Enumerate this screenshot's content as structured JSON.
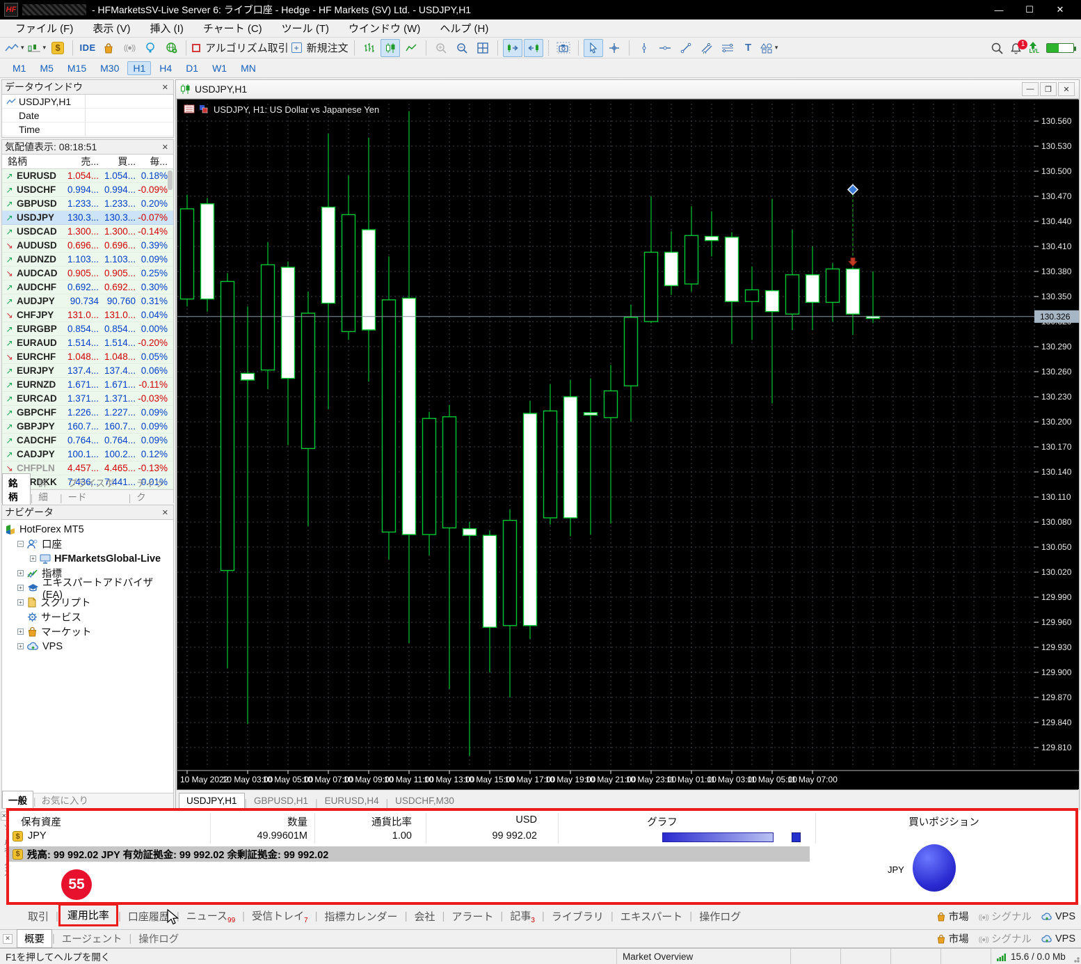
{
  "window": {
    "logo": "HF",
    "title": "- HFMarketsSV-Live Server 6: ライブ口座 - Hedge - HF Markets (SV) Ltd. - USDJPY,H1",
    "controls": {
      "minimize": "—",
      "maximize": "☐",
      "close": "✕"
    }
  },
  "menu": {
    "items": [
      "ファイル (F)",
      "表示 (V)",
      "挿入 (I)",
      "チャート (C)",
      "ツール (T)",
      "ウインドウ (W)",
      "ヘルプ (H)"
    ]
  },
  "toolbar": {
    "ide_label": "IDE",
    "algo_label": "アルゴリズム取引",
    "new_order_label": "新規注文",
    "bell_count": "1",
    "lvl_label": "LVL"
  },
  "timeframes": {
    "items": [
      "M1",
      "M5",
      "M15",
      "M30",
      "H1",
      "H4",
      "D1",
      "W1",
      "MN"
    ],
    "active": "H1"
  },
  "data_window": {
    "title": "データウインドウ",
    "rows": [
      "USDJPY,H1",
      "Date",
      "Time"
    ]
  },
  "market_watch": {
    "title": "気配値表示: 08:18:51",
    "columns": [
      "銘柄",
      "売...",
      "買...",
      "毎..."
    ],
    "rows": [
      {
        "sym": "EURUSD",
        "dir": "u",
        "sell": "1.054...",
        "buy": "1.054...",
        "pct": "0.18%",
        "sc": "d",
        "bc": "u",
        "pc": "u"
      },
      {
        "sym": "USDCHF",
        "dir": "u",
        "sell": "0.994...",
        "buy": "0.994...",
        "pct": "-0.09%",
        "sc": "u",
        "bc": "u",
        "pc": "d"
      },
      {
        "sym": "GBPUSD",
        "dir": "u",
        "sell": "1.233...",
        "buy": "1.233...",
        "pct": "0.20%",
        "sc": "u",
        "bc": "u",
        "pc": "u"
      },
      {
        "sym": "USDJPY",
        "dir": "u",
        "sell": "130.3...",
        "buy": "130.3...",
        "pct": "-0.07%",
        "sc": "u",
        "bc": "u",
        "pc": "d",
        "selected": true
      },
      {
        "sym": "USDCAD",
        "dir": "u",
        "sell": "1.300...",
        "buy": "1.300...",
        "pct": "-0.14%",
        "sc": "d",
        "bc": "d",
        "pc": "d"
      },
      {
        "sym": "AUDUSD",
        "dir": "d",
        "sell": "0.696...",
        "buy": "0.696...",
        "pct": "0.39%",
        "sc": "d",
        "bc": "d",
        "pc": "u"
      },
      {
        "sym": "AUDNZD",
        "dir": "u",
        "sell": "1.103...",
        "buy": "1.103...",
        "pct": "0.09%",
        "sc": "u",
        "bc": "u",
        "pc": "u"
      },
      {
        "sym": "AUDCAD",
        "dir": "d",
        "sell": "0.905...",
        "buy": "0.905...",
        "pct": "0.25%",
        "sc": "d",
        "bc": "d",
        "pc": "u"
      },
      {
        "sym": "AUDCHF",
        "dir": "u",
        "sell": "0.692...",
        "buy": "0.692...",
        "pct": "0.30%",
        "sc": "u",
        "bc": "d",
        "pc": "u"
      },
      {
        "sym": "AUDJPY",
        "dir": "u",
        "sell": "90.734",
        "buy": "90.760",
        "pct": "0.31%",
        "sc": "u",
        "bc": "u",
        "pc": "u"
      },
      {
        "sym": "CHFJPY",
        "dir": "d",
        "sell": "131.0...",
        "buy": "131.0...",
        "pct": "0.04%",
        "sc": "d",
        "bc": "d",
        "pc": "u"
      },
      {
        "sym": "EURGBP",
        "dir": "u",
        "sell": "0.854...",
        "buy": "0.854...",
        "pct": "0.00%",
        "sc": "u",
        "bc": "u",
        "pc": "u"
      },
      {
        "sym": "EURAUD",
        "dir": "u",
        "sell": "1.514...",
        "buy": "1.514...",
        "pct": "-0.20%",
        "sc": "u",
        "bc": "u",
        "pc": "d"
      },
      {
        "sym": "EURCHF",
        "dir": "d",
        "sell": "1.048...",
        "buy": "1.048...",
        "pct": "0.05%",
        "sc": "d",
        "bc": "d",
        "pc": "u"
      },
      {
        "sym": "EURJPY",
        "dir": "u",
        "sell": "137.4...",
        "buy": "137.4...",
        "pct": "0.06%",
        "sc": "u",
        "bc": "u",
        "pc": "u"
      },
      {
        "sym": "EURNZD",
        "dir": "u",
        "sell": "1.671...",
        "buy": "1.671...",
        "pct": "-0.11%",
        "sc": "u",
        "bc": "u",
        "pc": "d"
      },
      {
        "sym": "EURCAD",
        "dir": "u",
        "sell": "1.371...",
        "buy": "1.371...",
        "pct": "-0.03%",
        "sc": "u",
        "bc": "u",
        "pc": "d"
      },
      {
        "sym": "GBPCHF",
        "dir": "u",
        "sell": "1.226...",
        "buy": "1.227...",
        "pct": "0.09%",
        "sc": "u",
        "bc": "u",
        "pc": "u"
      },
      {
        "sym": "GBPJPY",
        "dir": "u",
        "sell": "160.7...",
        "buy": "160.7...",
        "pct": "0.09%",
        "sc": "u",
        "bc": "u",
        "pc": "u"
      },
      {
        "sym": "CADCHF",
        "dir": "u",
        "sell": "0.764...",
        "buy": "0.764...",
        "pct": "0.09%",
        "sc": "u",
        "bc": "u",
        "pc": "u"
      },
      {
        "sym": "CADJPY",
        "dir": "u",
        "sell": "100.1...",
        "buy": "100.2...",
        "pct": "0.12%",
        "sc": "u",
        "bc": "u",
        "pc": "u"
      },
      {
        "sym": "CHFPLN",
        "dir": "d",
        "sell": "4.457...",
        "buy": "4.465...",
        "pct": "-0.13%",
        "sc": "d",
        "bc": "d",
        "pc": "d",
        "dim": true
      },
      {
        "sym": "EURDKK",
        "dir": "u",
        "sell": "7.436...",
        "buy": "7.441...",
        "pct": "0.01%",
        "sc": "u",
        "bc": "u",
        "pc": "u"
      }
    ],
    "tabs": [
      "銘柄",
      "詳細",
      "プライスボード",
      "ティック"
    ],
    "active_tab": "銘柄"
  },
  "navigator": {
    "title": "ナビゲータ",
    "items": [
      {
        "label": "HotForex MT5",
        "icon": "hotforex-logo",
        "indent": 0,
        "exp": "none"
      },
      {
        "label": "口座",
        "icon": "accounts-icon",
        "indent": 1,
        "exp": "minus"
      },
      {
        "label": "HFMarketsGlobal-Live",
        "icon": "account-server-icon",
        "indent": 2,
        "exp": "plus",
        "bold": true
      },
      {
        "label": "指標",
        "icon": "indicators-icon",
        "indent": 1,
        "exp": "plus"
      },
      {
        "label": "エキスパートアドバイザ(EA)",
        "icon": "ea-icon",
        "indent": 1,
        "exp": "plus"
      },
      {
        "label": "スクリプト",
        "icon": "scripts-icon",
        "indent": 1,
        "exp": "plus"
      },
      {
        "label": "サービス",
        "icon": "services-icon",
        "indent": 1,
        "exp": "none"
      },
      {
        "label": "マーケット",
        "icon": "market-icon",
        "indent": 1,
        "exp": "plus"
      },
      {
        "label": "VPS",
        "icon": "vps-icon",
        "indent": 1,
        "exp": "plus"
      }
    ],
    "tabs": [
      "一般",
      "お気に入り"
    ],
    "active_tab": "一般"
  },
  "chart": {
    "window_title": "USDJPY,H1",
    "tabs": [
      "USDJPY,H1",
      "GBPUSD,H1",
      "EURUSD,H4",
      "USDCHF,M30"
    ],
    "active_tab": "USDJPY,H1"
  },
  "chart_data": {
    "type": "candlestick",
    "symbol": "USDJPY",
    "timeframe": "H1",
    "title": "USDJPY, H1:  US Dollar vs Japanese Yen",
    "current_price": "130.326",
    "candle_color": "#00c832",
    "bull_fill": "#ffffff",
    "bear_fill": "#000000",
    "y_axis": {
      "top_tick": 130.56,
      "tick_step": 0.03,
      "tick_count": 26
    },
    "x_labels": [
      {
        "i": 0,
        "text": "10 May 2022"
      },
      {
        "i": 3,
        "text": "10 May 03:00"
      },
      {
        "i": 5,
        "text": "10 May 05:00"
      },
      {
        "i": 7,
        "text": "10 May 07:00"
      },
      {
        "i": 9,
        "text": "10 May 09:00"
      },
      {
        "i": 11,
        "text": "10 May 11:00"
      },
      {
        "i": 13,
        "text": "10 May 13:00"
      },
      {
        "i": 15,
        "text": "10 May 15:00"
      },
      {
        "i": 17,
        "text": "10 May 17:00"
      },
      {
        "i": 19,
        "text": "10 May 19:00"
      },
      {
        "i": 21,
        "text": "10 May 21:00"
      },
      {
        "i": 23,
        "text": "10 May 23:00"
      },
      {
        "i": 25,
        "text": "11 May 01:00"
      },
      {
        "i": 27,
        "text": "11 May 03:00"
      },
      {
        "i": 29,
        "text": "11 May 05:00"
      },
      {
        "i": 31,
        "text": "11 May 07:00"
      }
    ],
    "candles": [
      {
        "t": "10 May 00:00",
        "o": 130.455,
        "h": 130.472,
        "l": 130.338,
        "c": 130.347
      },
      {
        "t": "10 May 01:00",
        "o": 130.347,
        "h": 130.468,
        "l": 130.332,
        "c": 130.461
      },
      {
        "t": "10 May 02:00",
        "o": 130.368,
        "h": 130.378,
        "l": 129.905,
        "c": 130.022
      },
      {
        "t": "10 May 03:00",
        "o": 130.25,
        "h": 130.338,
        "l": 129.838,
        "c": 130.258
      },
      {
        "t": "10 May 04:00",
        "o": 130.388,
        "h": 130.415,
        "l": 130.239,
        "c": 130.262
      },
      {
        "t": "10 May 05:00",
        "o": 130.252,
        "h": 130.392,
        "l": 130.172,
        "c": 130.385
      },
      {
        "t": "10 May 06:00",
        "o": 130.33,
        "h": 130.356,
        "l": 130.075,
        "c": 130.168
      },
      {
        "t": "10 May 07:00",
        "o": 130.342,
        "h": 130.545,
        "l": 130.215,
        "c": 130.457
      },
      {
        "t": "10 May 08:00",
        "o": 130.448,
        "h": 130.495,
        "l": 130.298,
        "c": 130.308
      },
      {
        "t": "10 May 09:00",
        "o": 130.31,
        "h": 130.54,
        "l": 130.248,
        "c": 130.43
      },
      {
        "t": "10 May 10:00",
        "o": 130.346,
        "h": 130.398,
        "l": 130.035,
        "c": 130.068
      },
      {
        "t": "10 May 11:00",
        "o": 130.065,
        "h": 130.572,
        "l": 129.935,
        "c": 130.348
      },
      {
        "t": "10 May 12:00",
        "o": 130.204,
        "h": 130.212,
        "l": 130.04,
        "c": 130.065
      },
      {
        "t": "10 May 13:00",
        "o": 130.206,
        "h": 130.22,
        "l": 129.88,
        "c": 130.073
      },
      {
        "t": "10 May 14:00",
        "o": 130.064,
        "h": 130.08,
        "l": 129.8,
        "c": 130.072
      },
      {
        "t": "10 May 15:00",
        "o": 129.954,
        "h": 130.07,
        "l": 129.9,
        "c": 130.064
      },
      {
        "t": "10 May 16:00",
        "o": 130.082,
        "h": 130.095,
        "l": 129.87,
        "c": 129.956
      },
      {
        "t": "10 May 17:00",
        "o": 129.956,
        "h": 130.225,
        "l": 129.94,
        "c": 130.21
      },
      {
        "t": "10 May 18:00",
        "o": 130.213,
        "h": 130.245,
        "l": 130.077,
        "c": 130.085
      },
      {
        "t": "10 May 19:00",
        "o": 130.085,
        "h": 130.25,
        "l": 130.063,
        "c": 130.23
      },
      {
        "t": "10 May 20:00",
        "o": 130.208,
        "h": 130.252,
        "l": 130.065,
        "c": 130.211
      },
      {
        "t": "10 May 21:00",
        "o": 130.237,
        "h": 130.268,
        "l": 130.078,
        "c": 130.205
      },
      {
        "t": "10 May 22:00",
        "o": 130.325,
        "h": 130.34,
        "l": 130.2,
        "c": 130.243
      },
      {
        "t": "10 May 23:00",
        "o": 130.403,
        "h": 130.47,
        "l": 130.318,
        "c": 130.32
      },
      {
        "t": "11 May 00:00",
        "o": 130.363,
        "h": 130.428,
        "l": 130.352,
        "c": 130.403
      },
      {
        "t": "11 May 01:00",
        "o": 130.423,
        "h": 130.458,
        "l": 130.356,
        "c": 130.365
      },
      {
        "t": "11 May 02:00",
        "o": 130.417,
        "h": 130.452,
        "l": 130.398,
        "c": 130.422
      },
      {
        "t": "11 May 03:00",
        "o": 130.344,
        "h": 130.427,
        "l": 130.293,
        "c": 130.421
      },
      {
        "t": "11 May 04:00",
        "o": 130.358,
        "h": 130.386,
        "l": 130.298,
        "c": 130.344
      },
      {
        "t": "11 May 05:00",
        "o": 130.332,
        "h": 130.467,
        "l": 130.222,
        "c": 130.357
      },
      {
        "t": "11 May 06:00",
        "o": 130.376,
        "h": 130.43,
        "l": 130.31,
        "c": 130.329
      },
      {
        "t": "11 May 07:00",
        "o": 130.343,
        "h": 130.41,
        "l": 130.31,
        "c": 130.376
      },
      {
        "t": "11 May 08:00",
        "o": 130.383,
        "h": 130.39,
        "l": 130.32,
        "c": 130.343
      },
      {
        "t": "11 May 09:00",
        "o": 130.329,
        "h": 130.385,
        "l": 130.304,
        "c": 130.383
      },
      {
        "t": "11 May 10:00",
        "o": 130.324,
        "h": 130.38,
        "l": 130.318,
        "c": 130.326
      }
    ],
    "marker": {
      "index": 33,
      "diamond_price": 130.478,
      "arrow_price": 130.388
    }
  },
  "toolbox": {
    "strip_label": "ツールボックス",
    "exposure": {
      "col_assets": "保有資産",
      "col_volume": "数量",
      "col_rate": "通貨比率",
      "col_usd": "USD",
      "col_graph": "グラフ",
      "col_long": "買いポジション",
      "row": {
        "asset": "JPY",
        "volume": "49.99601M",
        "rate": "1.00",
        "usd": "99 992.02"
      },
      "summary": "残高: 99 992.02 JPY   有効証拠金: 99 992.02   余剰証拠金: 99 992.02",
      "pie_label": "JPY"
    },
    "tabs": [
      {
        "label": "取引"
      },
      {
        "label": "運用比率",
        "active": true,
        "annotated": true
      },
      {
        "label": "口座履歴"
      },
      {
        "label": "ニュース",
        "count": "99"
      },
      {
        "label": "受信トレイ",
        "count": "7"
      },
      {
        "label": "指標カレンダー"
      },
      {
        "label": "会社"
      },
      {
        "label": "アラート"
      },
      {
        "label": "記事",
        "count": "3"
      },
      {
        "label": "ライブラリ"
      },
      {
        "label": "エキスパート"
      },
      {
        "label": "操作ログ"
      }
    ],
    "right_links": [
      {
        "label": "市場",
        "icon": "market-bag-icon"
      },
      {
        "label": "シグナル",
        "icon": "signal-icon",
        "gray": true
      },
      {
        "label": "VPS",
        "icon": "vps-cloud-icon"
      }
    ]
  },
  "agent_panel": {
    "tabs": [
      "概要",
      "エージェント",
      "操作ログ"
    ],
    "active": "概要"
  },
  "status_bar": {
    "help": "F1を押してヘルプを開く",
    "market_overview": "Market Overview",
    "traffic": "15.6 / 0.0 Mb"
  },
  "annotations": {
    "badge": "55"
  }
}
